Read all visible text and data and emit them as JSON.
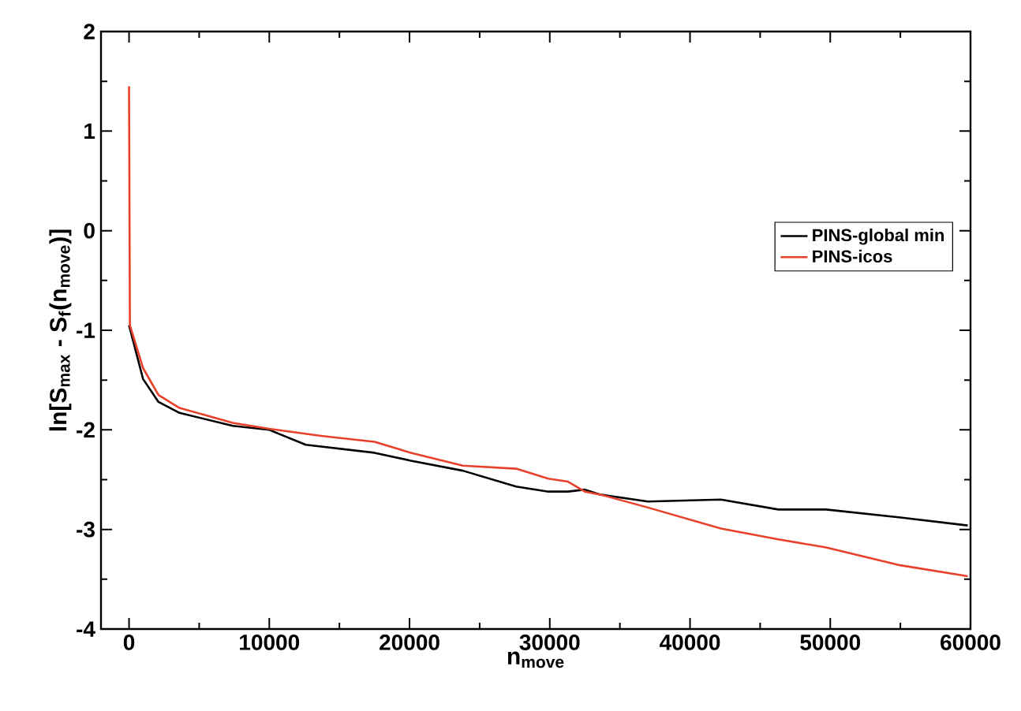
{
  "chart_data": {
    "type": "line",
    "xlabel": "n$_{move}$",
    "ylabel": "ln[S$_{max}$ - S$_{f}$(n$_{move}$)]",
    "xlim": [
      -2000,
      60000
    ],
    "ylim": [
      -4,
      2
    ],
    "xticks": [
      0,
      10000,
      20000,
      30000,
      40000,
      50000,
      60000
    ],
    "yticks": [
      -4,
      -3,
      -2,
      -1,
      0,
      1,
      2
    ],
    "grid": false,
    "legend": "right",
    "marker": "none",
    "line_style": "solid",
    "series": [
      {
        "name": "PINS-global min",
        "color": "#000000",
        "x": [
          0,
          1000,
          2100,
          3600,
          7400,
          10000,
          12600,
          17500,
          20100,
          23800,
          27600,
          29900,
          31300,
          32500,
          33600,
          37000,
          42200,
          46300,
          49700,
          55000,
          59800
        ],
        "values": [
          -0.95,
          -1.49,
          -1.72,
          -1.83,
          -1.96,
          -2.0,
          -2.15,
          -2.23,
          -2.31,
          -2.41,
          -2.57,
          -2.62,
          -2.62,
          -2.6,
          -2.65,
          -2.72,
          -2.7,
          -2.8,
          -2.8,
          -2.88,
          -2.96
        ]
      },
      {
        "name": "PINS-icos",
        "color": "#e8402a",
        "x": [
          0,
          30,
          60,
          1000,
          2100,
          3600,
          7400,
          10000,
          13700,
          17500,
          20100,
          23800,
          27600,
          29900,
          31300,
          32500,
          33600,
          37000,
          42200,
          46300,
          49700,
          55000,
          59800
        ],
        "values": [
          1.45,
          0.27,
          -0.95,
          -1.38,
          -1.65,
          -1.78,
          -1.93,
          -1.99,
          -2.06,
          -2.12,
          -2.23,
          -2.36,
          -2.39,
          -2.49,
          -2.52,
          -2.62,
          -2.65,
          -2.78,
          -2.99,
          -3.1,
          -3.18,
          -3.36,
          -3.47
        ]
      }
    ]
  }
}
